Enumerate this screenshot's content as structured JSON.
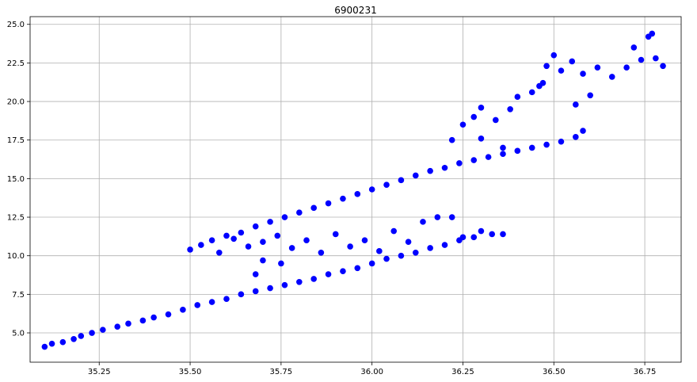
{
  "chart_data": {
    "type": "scatter",
    "title": "6900231",
    "xlabel": "",
    "ylabel": "",
    "xlim": [
      35.06,
      36.85
    ],
    "ylim": [
      3.1,
      25.5
    ],
    "xticks": [
      "35.25",
      "35.50",
      "35.75",
      "36.00",
      "36.25",
      "36.50",
      "36.75"
    ],
    "yticks": [
      "5.0",
      "7.5",
      "10.0",
      "12.5",
      "15.0",
      "17.5",
      "20.0",
      "22.5",
      "25.0"
    ],
    "grid": true,
    "marker_color": "#0000ff",
    "series": [
      {
        "points": [
          [
            35.1,
            4.1
          ],
          [
            35.12,
            4.3
          ],
          [
            35.15,
            4.4
          ],
          [
            35.18,
            4.6
          ],
          [
            35.2,
            4.8
          ],
          [
            35.23,
            5.0
          ],
          [
            35.26,
            5.2
          ],
          [
            35.3,
            5.4
          ],
          [
            35.33,
            5.6
          ],
          [
            35.37,
            5.8
          ],
          [
            35.4,
            6.0
          ],
          [
            35.44,
            6.2
          ],
          [
            35.48,
            6.5
          ],
          [
            35.52,
            6.8
          ],
          [
            35.56,
            7.0
          ],
          [
            35.6,
            7.2
          ],
          [
            35.64,
            7.5
          ],
          [
            35.68,
            7.7
          ],
          [
            35.72,
            7.9
          ],
          [
            35.76,
            8.1
          ],
          [
            35.8,
            8.3
          ],
          [
            35.84,
            8.5
          ],
          [
            35.88,
            8.8
          ],
          [
            35.92,
            9.0
          ],
          [
            35.96,
            9.2
          ],
          [
            36.0,
            9.5
          ],
          [
            36.04,
            9.8
          ],
          [
            36.08,
            10.0
          ],
          [
            36.12,
            10.2
          ],
          [
            36.16,
            10.5
          ],
          [
            36.2,
            10.7
          ],
          [
            36.24,
            11.0
          ],
          [
            36.28,
            11.2
          ],
          [
            36.33,
            11.4
          ],
          [
            36.36,
            11.4
          ],
          [
            35.53,
            10.7
          ],
          [
            35.56,
            11.0
          ],
          [
            35.6,
            11.3
          ],
          [
            35.64,
            11.5
          ],
          [
            35.68,
            11.9
          ],
          [
            35.72,
            12.2
          ],
          [
            35.76,
            12.5
          ],
          [
            35.8,
            12.8
          ],
          [
            35.84,
            13.1
          ],
          [
            35.88,
            13.4
          ],
          [
            35.92,
            13.7
          ],
          [
            35.96,
            14.0
          ],
          [
            36.0,
            14.3
          ],
          [
            36.04,
            14.6
          ],
          [
            36.08,
            14.9
          ],
          [
            36.12,
            15.2
          ],
          [
            36.16,
            15.5
          ],
          [
            36.2,
            15.7
          ],
          [
            36.24,
            16.0
          ],
          [
            36.28,
            16.2
          ],
          [
            36.32,
            16.4
          ],
          [
            36.36,
            16.6
          ],
          [
            36.4,
            16.8
          ],
          [
            36.44,
            17.0
          ],
          [
            36.48,
            17.2
          ],
          [
            36.52,
            17.4
          ],
          [
            36.56,
            17.7
          ],
          [
            36.58,
            18.1
          ],
          [
            35.5,
            10.4
          ],
          [
            35.58,
            10.2
          ],
          [
            35.62,
            11.1
          ],
          [
            35.66,
            10.6
          ],
          [
            35.7,
            10.9
          ],
          [
            35.74,
            11.3
          ],
          [
            35.78,
            10.5
          ],
          [
            35.82,
            11.0
          ],
          [
            35.86,
            10.2
          ],
          [
            35.9,
            11.4
          ],
          [
            35.94,
            10.6
          ],
          [
            35.98,
            11.0
          ],
          [
            36.02,
            10.3
          ],
          [
            36.06,
            11.6
          ],
          [
            36.1,
            10.9
          ],
          [
            36.14,
            12.2
          ],
          [
            36.18,
            12.5
          ],
          [
            36.22,
            12.5
          ],
          [
            36.25,
            11.2
          ],
          [
            36.3,
            11.6
          ],
          [
            35.7,
            9.7
          ],
          [
            35.75,
            9.5
          ],
          [
            35.68,
            8.8
          ],
          [
            36.22,
            17.5
          ],
          [
            36.25,
            18.5
          ],
          [
            36.28,
            19.0
          ],
          [
            36.3,
            19.6
          ],
          [
            36.34,
            18.8
          ],
          [
            36.38,
            19.5
          ],
          [
            36.4,
            20.3
          ],
          [
            36.44,
            20.6
          ],
          [
            36.46,
            21.0
          ],
          [
            36.48,
            22.3
          ],
          [
            36.52,
            22.0
          ],
          [
            36.55,
            22.6
          ],
          [
            36.58,
            21.8
          ],
          [
            36.6,
            20.4
          ],
          [
            36.62,
            22.2
          ],
          [
            36.66,
            21.6
          ],
          [
            36.7,
            22.2
          ],
          [
            36.72,
            23.5
          ],
          [
            36.74,
            22.7
          ],
          [
            36.76,
            24.2
          ],
          [
            36.77,
            24.4
          ],
          [
            36.78,
            22.8
          ],
          [
            36.8,
            22.3
          ],
          [
            36.5,
            23.0
          ],
          [
            36.47,
            21.2
          ],
          [
            36.56,
            19.8
          ],
          [
            36.3,
            17.6
          ],
          [
            36.36,
            17.0
          ]
        ]
      }
    ]
  }
}
